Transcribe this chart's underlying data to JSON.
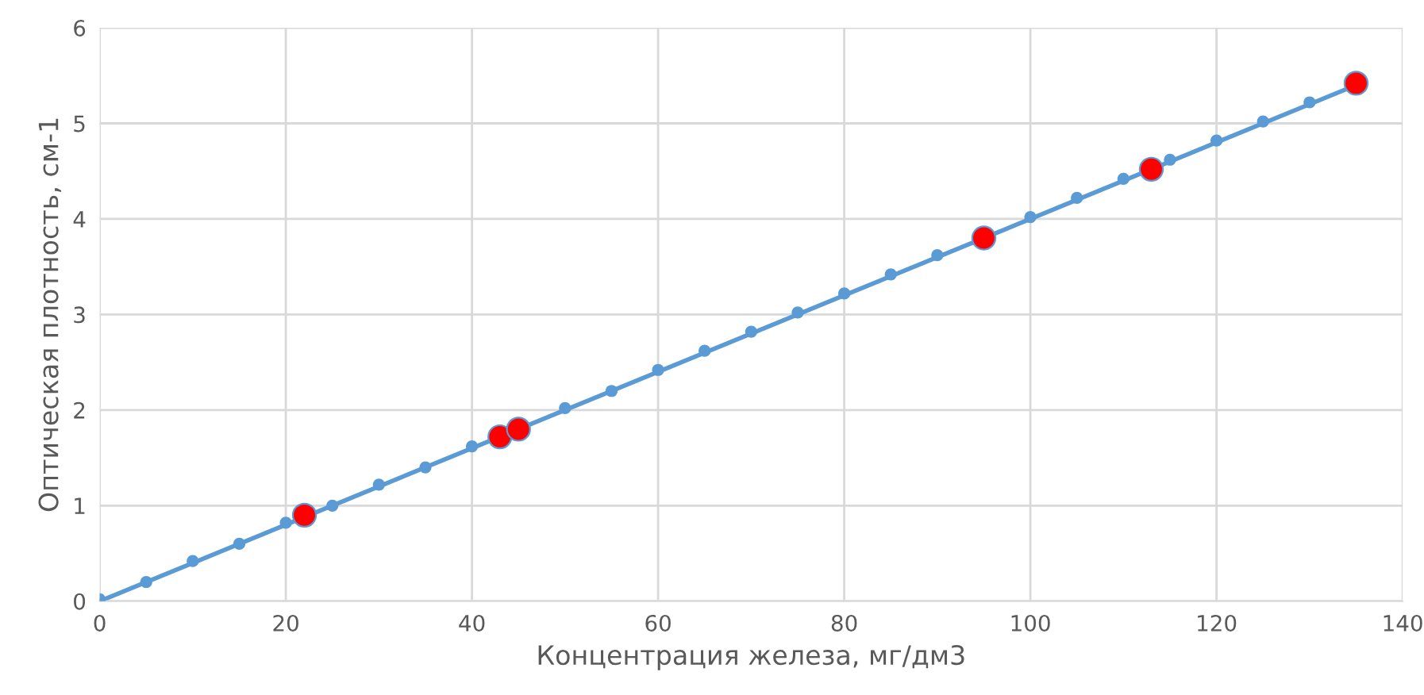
{
  "chart_data": {
    "type": "scatter",
    "xlabel": "Концентрация железа, мг/дм3",
    "ylabel": "Оптическая плотность, см-1",
    "xlim": [
      0,
      140
    ],
    "xticks": [
      0,
      20,
      40,
      60,
      80,
      100,
      120,
      140
    ],
    "ylim": [
      0,
      6
    ],
    "yticks": [
      0,
      1,
      2,
      3,
      4,
      5,
      6
    ],
    "grid": true,
    "marker": "circle",
    "series": [
      {
        "type": "line",
        "color": "#5b9bd5",
        "marker": "none",
        "x": [
          0,
          135
        ],
        "values": [
          0,
          5.4
        ]
      },
      {
        "color": "#5b9bd5",
        "x": [
          0,
          5,
          10,
          15,
          20,
          25,
          30,
          35,
          40,
          50,
          55,
          60,
          65,
          70,
          75,
          80,
          85,
          90,
          100,
          105,
          110,
          115,
          120,
          125,
          130
        ],
        "values": [
          0.02,
          0.2,
          0.42,
          0.6,
          0.82,
          1.0,
          1.22,
          1.4,
          1.62,
          2.02,
          2.2,
          2.42,
          2.62,
          2.82,
          3.02,
          3.22,
          3.42,
          3.62,
          4.02,
          4.22,
          4.42,
          4.62,
          4.82,
          5.02,
          5.22
        ]
      },
      {
        "color": "#ff0000",
        "x": [
          22,
          43,
          45,
          95,
          113,
          135
        ],
        "values": [
          0.9,
          1.72,
          1.8,
          3.8,
          4.52,
          5.42
        ]
      }
    ]
  }
}
